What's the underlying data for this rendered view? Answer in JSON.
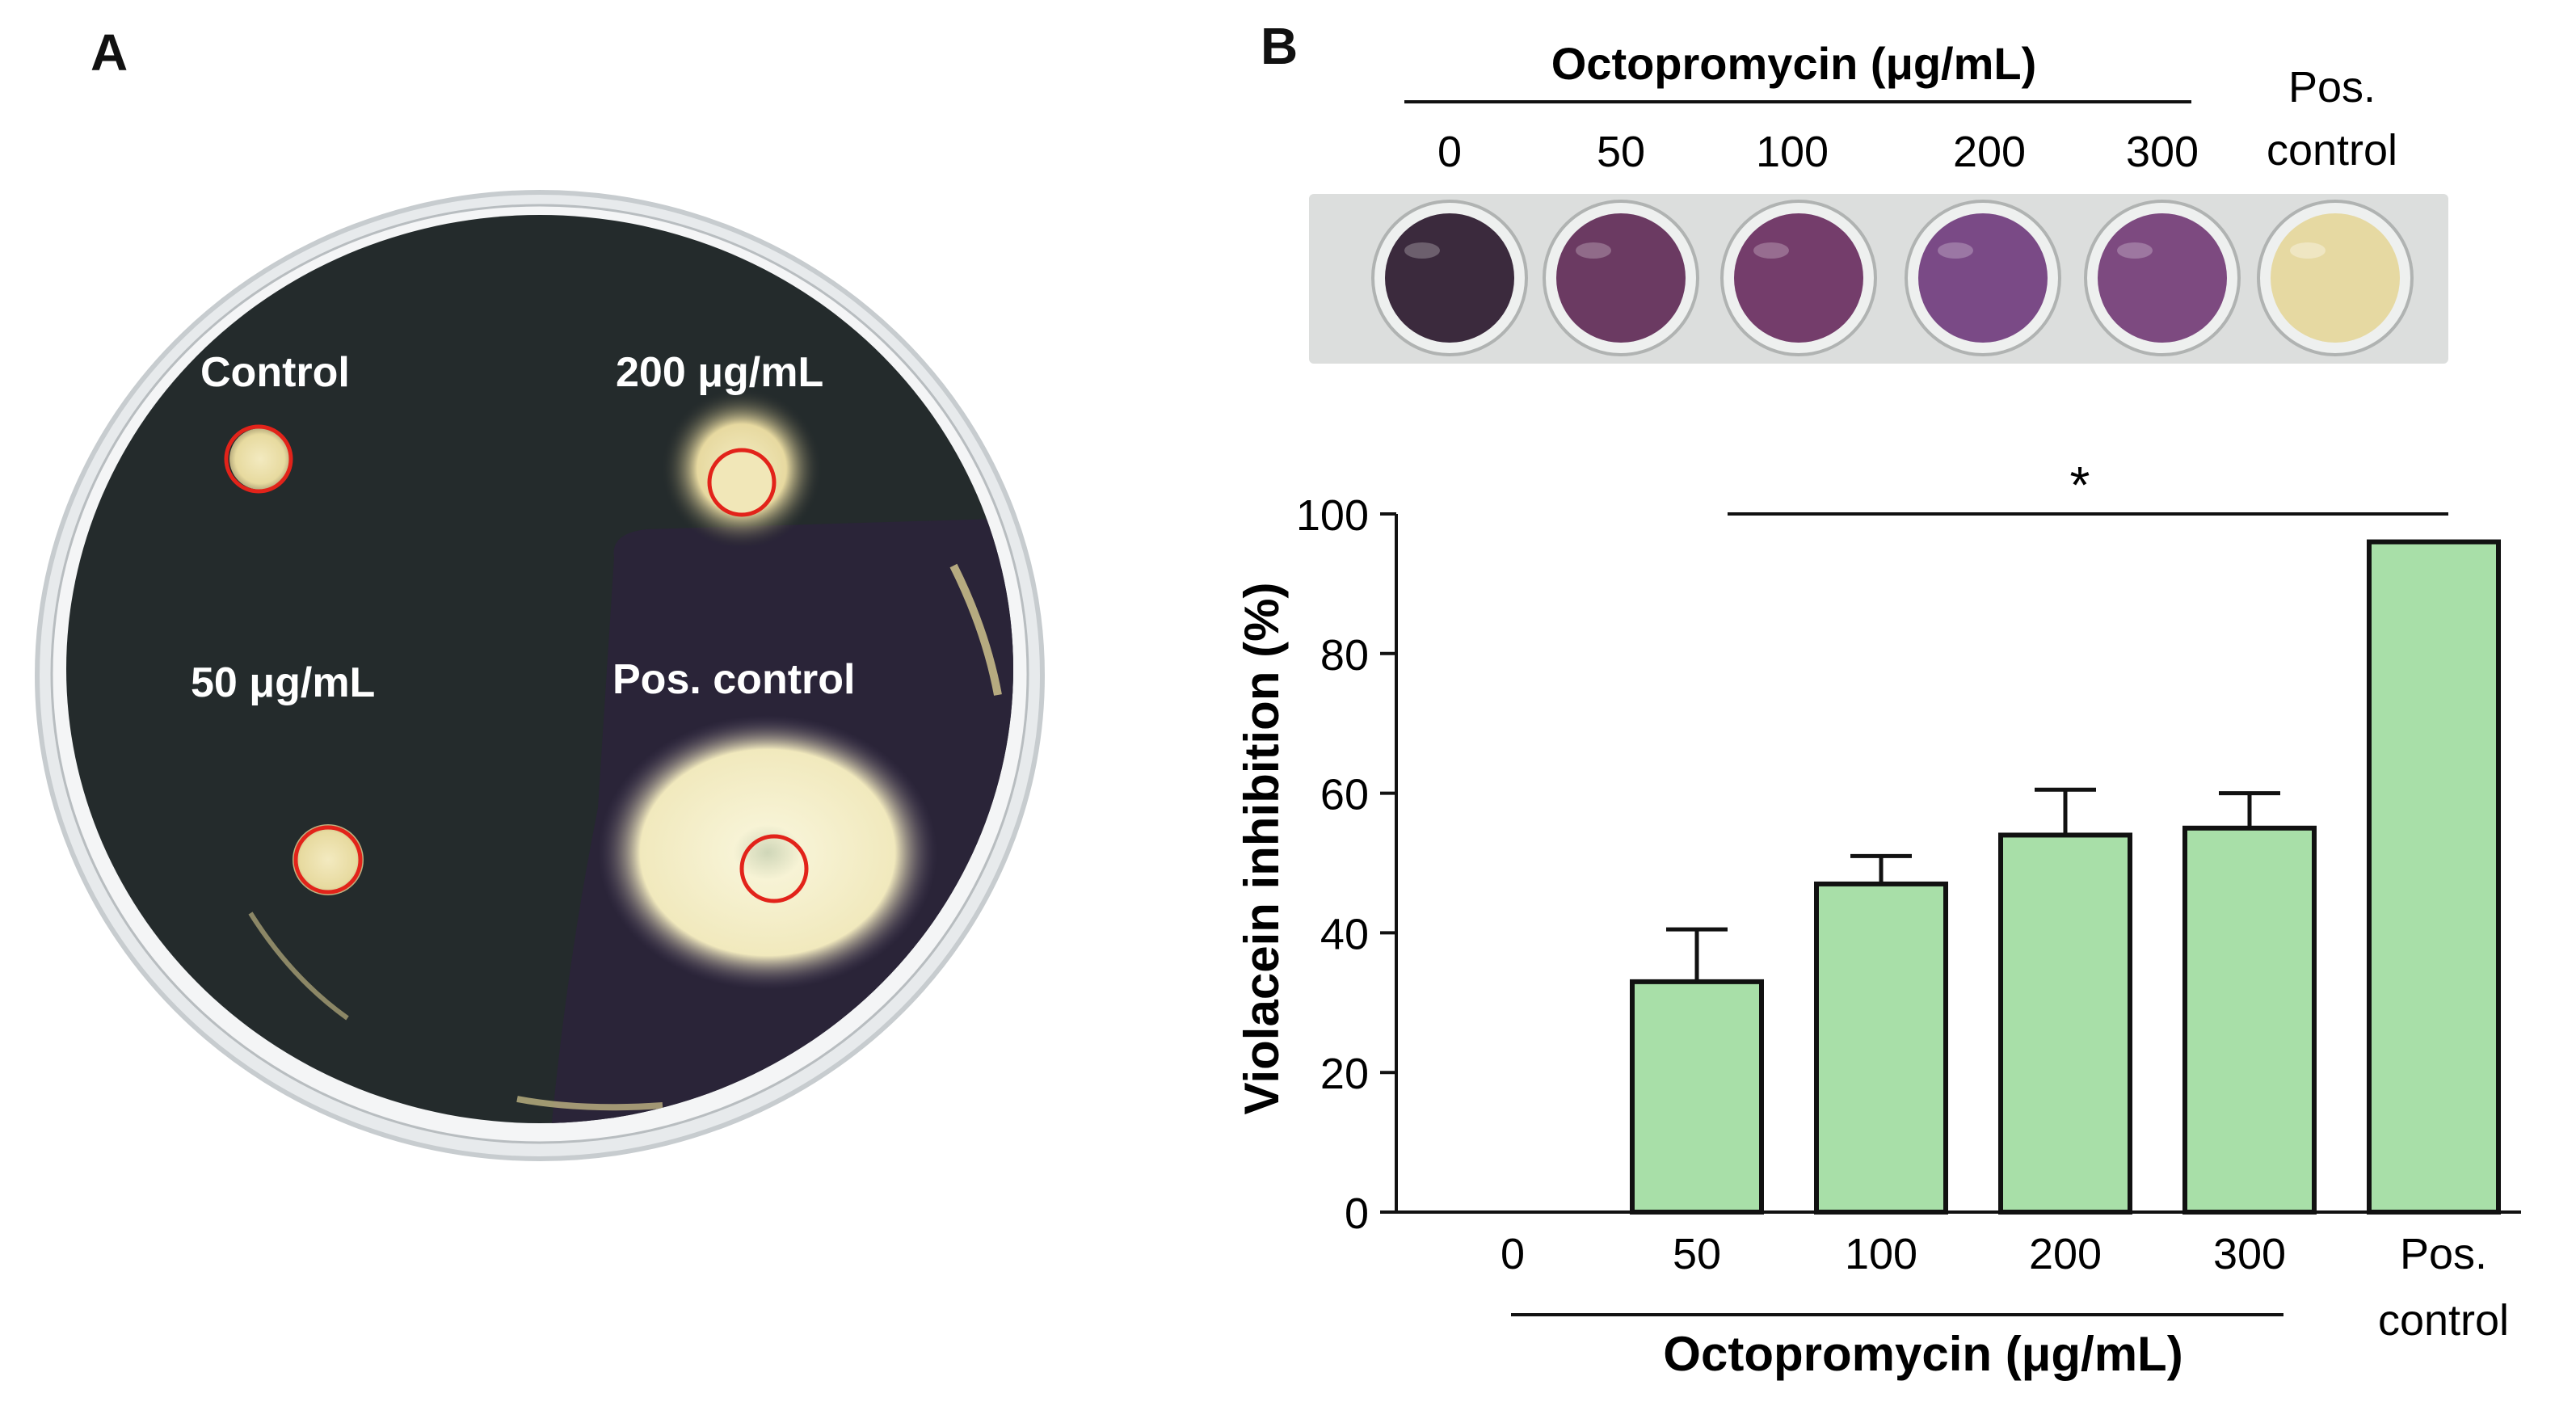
{
  "panel_a": {
    "letter": "A",
    "labels": {
      "control": "Control",
      "c200": "200 μg/mL",
      "c50": "50 μg/mL",
      "pos": "Pos. control"
    }
  },
  "panel_b": {
    "letter": "B",
    "wells": {
      "header": "Octopromycin (μg/mL)",
      "labels": [
        "0",
        "50",
        "100",
        "200",
        "300"
      ],
      "pos_line1": "Pos.",
      "pos_line2": "control"
    }
  },
  "chart_data": {
    "type": "bar",
    "categories": [
      "0",
      "50",
      "100",
      "200",
      "300",
      "Pos. control"
    ],
    "values": [
      0,
      33,
      47,
      54,
      55,
      96
    ],
    "error_plus": [
      0,
      7.5,
      4,
      6.5,
      5,
      0
    ],
    "ylabel": "Violacein inhibition (%)",
    "xlabel": "Octopromycin (μg/mL)",
    "ylim": [
      0,
      100
    ],
    "yticks": [
      0,
      20,
      40,
      60,
      80,
      100
    ],
    "bar_color": "#a8dfa8",
    "significance": "*",
    "grid": false
  }
}
